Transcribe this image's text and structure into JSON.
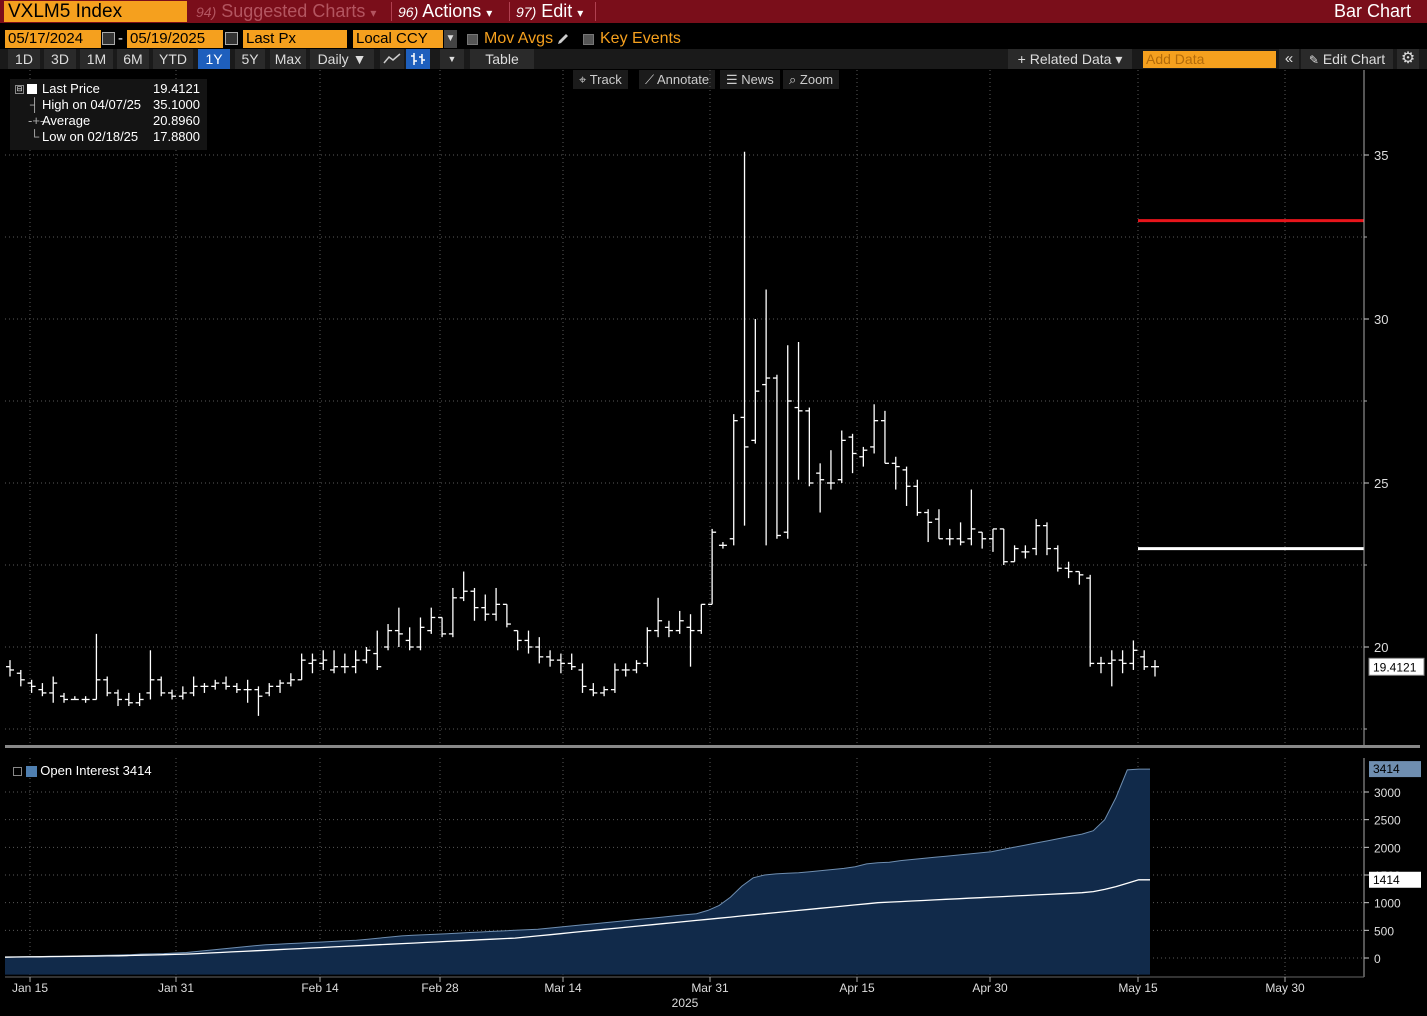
{
  "header": {
    "ticker": "VXLM5 Index",
    "menus": [
      {
        "num": "94)",
        "label": "Suggested Charts",
        "arrow": "▾"
      },
      {
        "num": "96)",
        "label": "Actions",
        "arrow": "▾"
      },
      {
        "num": "97)",
        "label": "Edit",
        "arrow": "▾"
      }
    ],
    "title": "Bar Chart"
  },
  "controls": {
    "start_date": "05/17/2024",
    "dash": "-",
    "end_date": "05/19/2025",
    "field": "Last Px",
    "currency": "Local CCY",
    "mov_avgs": "Mov Avgs",
    "key_events": "Key Events"
  },
  "ranges": [
    "1D",
    "3D",
    "1M",
    "6M",
    "YTD",
    "1Y",
    "5Y",
    "Max"
  ],
  "selected_range": "1Y",
  "period": "Daily ▼",
  "table_label": "Table",
  "related_data": "+ Related Data ▾",
  "add_data_placeholder": "Add Data",
  "edit_chart": "Edit Chart",
  "toolbar": [
    "Track",
    "Annotate",
    "News",
    "Zoom"
  ],
  "legend": {
    "rows": [
      {
        "label": "Last Price",
        "value": "19.4121"
      },
      {
        "label": "High on 04/07/25",
        "value": "35.1000"
      },
      {
        "label": "Average",
        "value": "20.8960"
      },
      {
        "label": "Low on 02/18/25",
        "value": "17.8800"
      }
    ]
  },
  "oi_legend": "Open Interest 3414",
  "colors": {
    "topbar": "#7a0e1a",
    "orange": "#f5a01e",
    "selected": "#1e5fbd",
    "high_line": "#e8151b",
    "avg_line": "#ffffff",
    "oi_fill": "#112a4a"
  },
  "chart_data": [
    {
      "type": "bar",
      "ylim": [
        17,
        37
      ],
      "yticks": [
        20,
        25,
        30,
        35
      ],
      "xticks": [
        "Jan 15",
        "Jan 31",
        "Feb 14",
        "Feb 28",
        "Mar 14",
        "Mar 31",
        "Apr 15",
        "Apr 30",
        "May 15",
        "May 30"
      ],
      "year_label": "2025",
      "last_value_label": "19.4121",
      "high_marker": 33.0,
      "avg_marker": 23.0,
      "ohlc": [
        [
          19.4,
          19.6,
          19.1,
          19.3
        ],
        [
          19.2,
          19.3,
          18.8,
          19.0
        ],
        [
          18.9,
          19.0,
          18.6,
          18.8
        ],
        [
          18.7,
          18.9,
          18.5,
          18.6
        ],
        [
          18.6,
          19.1,
          18.3,
          18.9
        ],
        [
          18.5,
          18.6,
          18.3,
          18.4
        ],
        [
          18.4,
          18.5,
          18.4,
          18.4
        ],
        [
          18.4,
          18.5,
          18.3,
          18.4
        ],
        [
          18.4,
          20.4,
          18.4,
          19.0
        ],
        [
          19.0,
          19.1,
          18.5,
          18.6
        ],
        [
          18.6,
          18.7,
          18.2,
          18.4
        ],
        [
          18.4,
          18.6,
          18.2,
          18.3
        ],
        [
          18.3,
          18.6,
          18.2,
          18.4
        ],
        [
          18.6,
          19.9,
          18.4,
          19.0
        ],
        [
          19.0,
          19.1,
          18.5,
          18.6
        ],
        [
          18.6,
          18.7,
          18.4,
          18.5
        ],
        [
          18.5,
          18.8,
          18.4,
          18.6
        ],
        [
          18.6,
          19.1,
          18.5,
          18.8
        ],
        [
          18.8,
          18.9,
          18.6,
          18.8
        ],
        [
          18.8,
          19.0,
          18.7,
          18.9
        ],
        [
          18.9,
          19.1,
          18.7,
          18.8
        ],
        [
          18.8,
          18.9,
          18.6,
          18.7
        ],
        [
          18.7,
          19.0,
          18.3,
          18.7
        ],
        [
          18.7,
          18.8,
          17.9,
          18.5
        ],
        [
          18.6,
          18.9,
          18.5,
          18.8
        ],
        [
          18.8,
          19.0,
          18.6,
          18.9
        ],
        [
          18.9,
          19.2,
          18.8,
          19.0
        ],
        [
          19.0,
          19.8,
          19.0,
          19.6
        ],
        [
          19.5,
          19.8,
          19.2,
          19.6
        ],
        [
          19.5,
          19.9,
          19.3,
          19.6
        ],
        [
          19.3,
          19.9,
          19.2,
          19.4
        ],
        [
          19.4,
          19.8,
          19.2,
          19.4
        ],
        [
          19.4,
          19.9,
          19.2,
          19.6
        ],
        [
          19.6,
          20.0,
          19.5,
          19.9
        ],
        [
          19.8,
          20.5,
          19.3,
          19.4
        ],
        [
          20.0,
          20.7,
          19.9,
          20.5
        ],
        [
          20.5,
          21.2,
          20.0,
          20.4
        ],
        [
          20.2,
          20.6,
          19.9,
          20.0
        ],
        [
          20.0,
          20.9,
          19.9,
          20.6
        ],
        [
          20.5,
          21.2,
          20.4,
          20.9
        ],
        [
          20.9,
          20.9,
          20.3,
          20.4
        ],
        [
          20.4,
          21.8,
          20.3,
          21.5
        ],
        [
          21.5,
          22.3,
          21.4,
          21.7
        ],
        [
          21.7,
          21.8,
          20.8,
          21.2
        ],
        [
          21.2,
          21.6,
          20.8,
          21.0
        ],
        [
          21.0,
          21.8,
          20.8,
          21.3
        ],
        [
          21.3,
          21.3,
          20.6,
          20.7
        ],
        [
          20.5,
          20.5,
          19.9,
          20.2
        ],
        [
          20.2,
          20.5,
          19.8,
          20.0
        ],
        [
          20.0,
          20.3,
          19.5,
          19.7
        ],
        [
          19.7,
          19.9,
          19.4,
          19.6
        ],
        [
          19.6,
          19.8,
          19.2,
          19.5
        ],
        [
          19.5,
          19.8,
          19.3,
          19.4
        ],
        [
          19.3,
          19.5,
          18.6,
          18.8
        ],
        [
          18.7,
          18.9,
          18.5,
          18.6
        ],
        [
          18.6,
          18.8,
          18.5,
          18.7
        ],
        [
          18.7,
          19.5,
          18.6,
          19.3
        ],
        [
          19.3,
          19.5,
          19.1,
          19.3
        ],
        [
          19.3,
          19.6,
          19.2,
          19.5
        ],
        [
          19.5,
          20.6,
          19.4,
          20.5
        ],
        [
          20.5,
          21.5,
          20.3,
          20.8
        ],
        [
          20.6,
          20.8,
          20.3,
          20.5
        ],
        [
          20.5,
          21.1,
          20.4,
          20.8
        ],
        [
          20.6,
          21.0,
          19.4,
          20.5
        ],
        [
          20.5,
          21.3,
          20.4,
          21.3
        ],
        [
          21.3,
          23.6,
          21.3,
          23.5
        ],
        [
          23.1,
          23.2,
          23.0,
          23.1
        ],
        [
          23.3,
          27.1,
          23.1,
          26.9
        ],
        [
          27.0,
          35.1,
          23.7,
          26.1
        ],
        [
          26.3,
          30.0,
          26.2,
          27.8
        ],
        [
          28.0,
          30.9,
          23.1,
          28.2
        ],
        [
          28.2,
          28.3,
          23.3,
          23.4
        ],
        [
          23.5,
          29.2,
          23.3,
          27.5
        ],
        [
          27.3,
          29.3,
          25.1,
          27.2
        ],
        [
          27.2,
          27.3,
          24.9,
          25.0
        ],
        [
          25.3,
          25.6,
          24.1,
          25.1
        ],
        [
          25.0,
          26.0,
          24.8,
          25.0
        ],
        [
          25.1,
          26.6,
          25.0,
          26.3
        ],
        [
          26.4,
          26.5,
          25.3,
          25.9
        ],
        [
          25.8,
          26.1,
          25.5,
          26.0
        ],
        [
          26.1,
          27.4,
          25.9,
          26.9
        ],
        [
          26.9,
          27.2,
          25.6,
          25.6
        ],
        [
          25.6,
          25.8,
          24.8,
          25.5
        ],
        [
          25.4,
          25.5,
          24.3,
          24.9
        ],
        [
          24.9,
          25.1,
          24.0,
          24.1
        ],
        [
          24.1,
          24.2,
          23.2,
          23.8
        ],
        [
          23.9,
          24.2,
          23.3,
          23.3
        ],
        [
          23.3,
          23.6,
          23.1,
          23.3
        ],
        [
          23.3,
          23.8,
          23.1,
          23.2
        ],
        [
          23.3,
          24.8,
          23.1,
          23.6
        ],
        [
          23.5,
          23.5,
          23.0,
          23.3
        ],
        [
          23.3,
          23.6,
          22.9,
          23.6
        ],
        [
          23.6,
          23.6,
          22.5,
          22.6
        ],
        [
          22.6,
          23.1,
          22.6,
          23.0
        ],
        [
          22.9,
          23.1,
          22.7,
          22.9
        ],
        [
          23.0,
          23.9,
          22.8,
          23.7
        ],
        [
          23.7,
          23.8,
          22.8,
          23.0
        ],
        [
          23.0,
          23.1,
          22.3,
          22.4
        ],
        [
          22.4,
          22.6,
          22.1,
          22.3
        ],
        [
          22.3,
          22.3,
          21.9,
          22.2
        ],
        [
          22.1,
          22.2,
          19.4,
          19.5
        ],
        [
          19.5,
          19.7,
          19.2,
          19.5
        ],
        [
          19.5,
          19.9,
          18.8,
          19.6
        ],
        [
          19.6,
          19.9,
          19.2,
          19.5
        ],
        [
          19.5,
          20.2,
          19.3,
          19.9
        ],
        [
          19.7,
          19.9,
          19.3,
          19.4
        ],
        [
          19.4,
          19.6,
          19.1,
          19.4
        ]
      ]
    },
    {
      "type": "area",
      "series": [
        {
          "name": "Open Interest",
          "last_value": 3414
        }
      ],
      "secondary_line_label": "1414",
      "ylim": [
        -300,
        3600
      ],
      "yticks": [
        0,
        500,
        1000,
        1500,
        2000,
        2500,
        3000
      ],
      "oi_values": [
        20,
        20,
        25,
        25,
        30,
        30,
        35,
        40,
        45,
        50,
        55,
        60,
        70,
        75,
        80,
        90,
        100,
        120,
        140,
        160,
        180,
        200,
        220,
        240,
        250,
        260,
        270,
        280,
        290,
        300,
        310,
        320,
        340,
        360,
        380,
        400,
        410,
        420,
        430,
        440,
        450,
        460,
        470,
        480,
        490,
        500,
        510,
        520,
        540,
        560,
        580,
        600,
        620,
        640,
        660,
        680,
        700,
        720,
        740,
        760,
        780,
        800,
        860,
        950,
        1100,
        1300,
        1450,
        1500,
        1520,
        1530,
        1540,
        1560,
        1580,
        1600,
        1620,
        1650,
        1700,
        1720,
        1730,
        1760,
        1780,
        1800,
        1820,
        1840,
        1860,
        1880,
        1900,
        1920,
        1960,
        2000,
        2040,
        2080,
        2120,
        2160,
        2200,
        2240,
        2300,
        2500,
        2900,
        3400,
        3414,
        3414
      ],
      "avg_values": [
        15,
        18,
        20,
        22,
        25,
        28,
        30,
        32,
        35,
        38,
        40,
        45,
        50,
        55,
        60,
        65,
        70,
        80,
        90,
        100,
        110,
        120,
        130,
        140,
        150,
        160,
        170,
        180,
        190,
        200,
        210,
        220,
        230,
        240,
        250,
        260,
        270,
        280,
        290,
        300,
        310,
        320,
        330,
        340,
        350,
        360,
        380,
        400,
        420,
        440,
        460,
        480,
        500,
        520,
        540,
        560,
        580,
        600,
        620,
        640,
        660,
        680,
        700,
        720,
        740,
        760,
        780,
        800,
        820,
        840,
        860,
        880,
        900,
        920,
        940,
        960,
        980,
        1000,
        1010,
        1020,
        1030,
        1040,
        1050,
        1060,
        1070,
        1080,
        1090,
        1100,
        1110,
        1120,
        1130,
        1140,
        1150,
        1160,
        1170,
        1180,
        1200,
        1240,
        1290,
        1350,
        1414,
        1414
      ]
    }
  ]
}
